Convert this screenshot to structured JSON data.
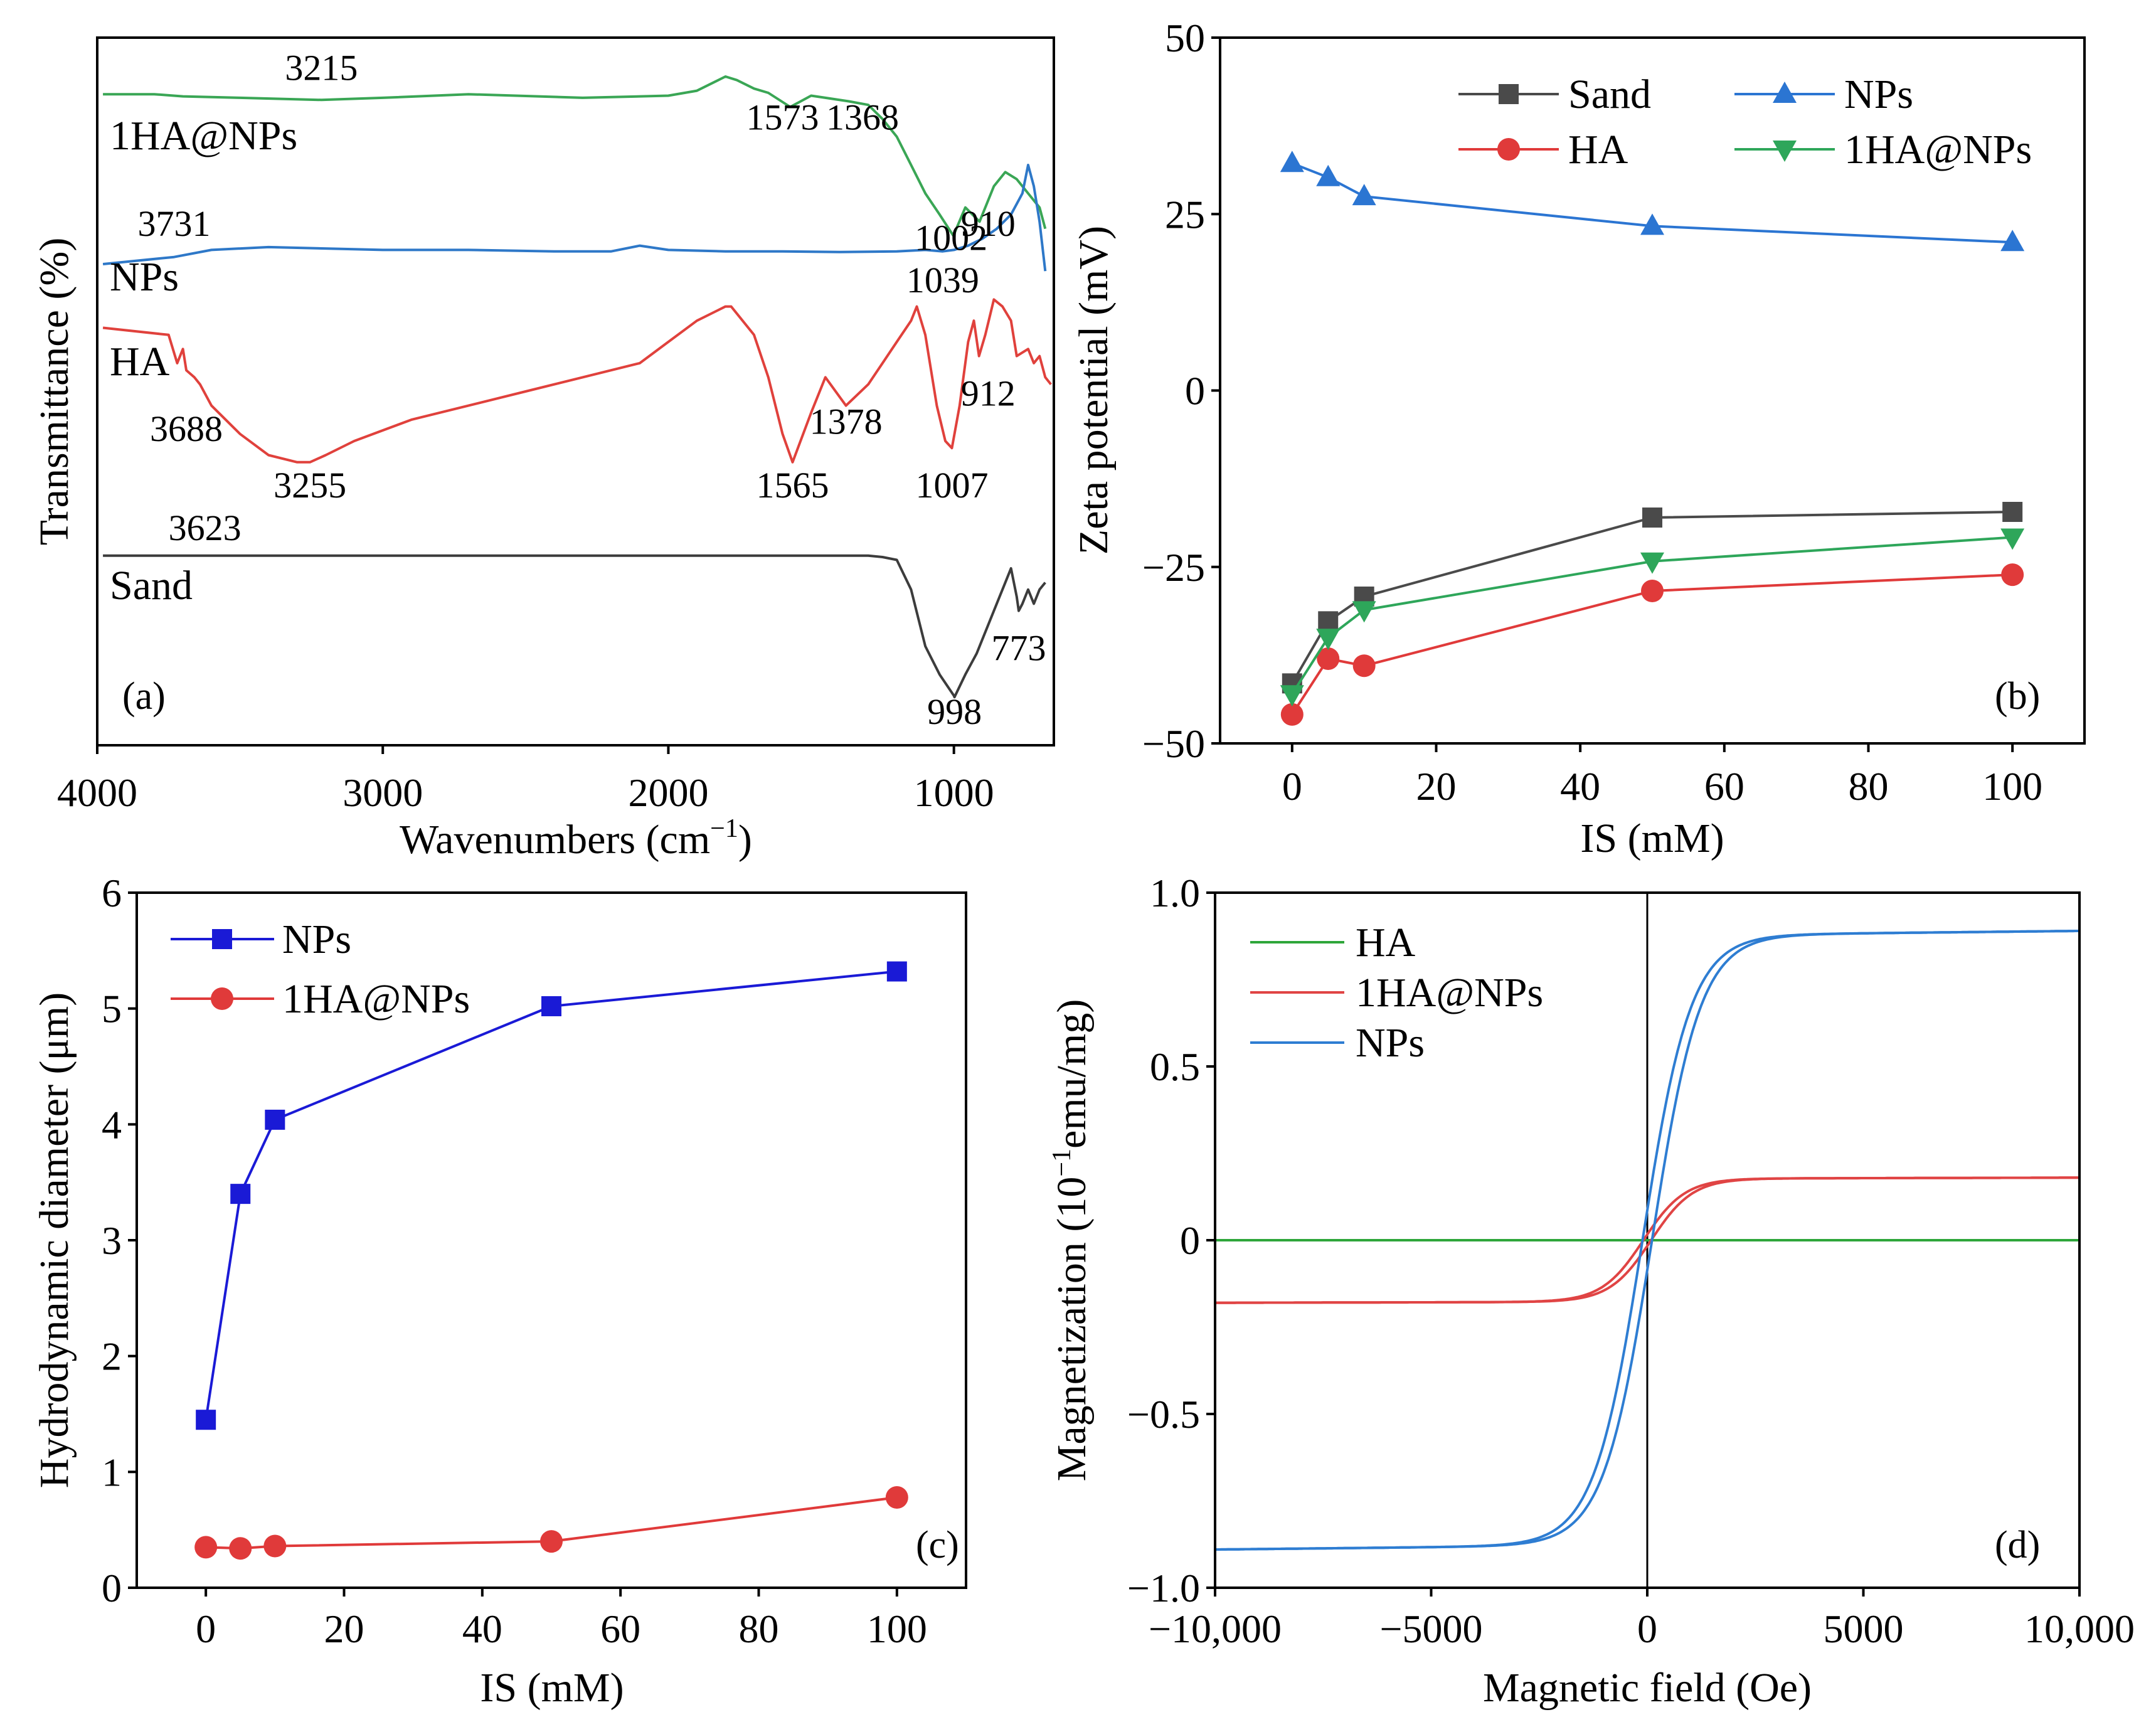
{
  "chart_data": [
    {
      "type": "line",
      "panel": "(a)",
      "xlabel": "Wavenumbers (cm",
      "xlabel_sup": "−1",
      "xlabel_end": ")",
      "ylabel": "Transmittance (%)",
      "xlim": [
        4000,
        650
      ],
      "xticks": [
        "4000",
        "3000",
        "2000",
        "1000"
      ],
      "colors": {
        "1HA@NPs": "#3aa655",
        "NPs": "#2e78c8",
        "HA": "#e0413c",
        "Sand": "#3c3c3c"
      },
      "series_labels": [
        "1HA@NPs",
        "NPs",
        "HA",
        "Sand"
      ],
      "series": [
        {
          "name": "1HA@NPs",
          "x": [
            3980,
            3800,
            3700,
            3500,
            3215,
            3000,
            2700,
            2300,
            2000,
            1900,
            1800,
            1760,
            1700,
            1650,
            1573,
            1500,
            1450,
            1368,
            1300,
            1250,
            1200,
            1150,
            1100,
            1050,
            1002,
            960,
            910,
            860,
            820,
            780,
            740,
            700,
            680
          ],
          "y": [
            0.92,
            0.92,
            0.917,
            0.915,
            0.912,
            0.915,
            0.92,
            0.915,
            0.918,
            0.925,
            0.945,
            0.94,
            0.928,
            0.922,
            0.902,
            0.918,
            0.915,
            0.91,
            0.905,
            0.885,
            0.86,
            0.82,
            0.78,
            0.75,
            0.72,
            0.76,
            0.74,
            0.79,
            0.81,
            0.8,
            0.78,
            0.76,
            0.73
          ]
        },
        {
          "name": "NPs",
          "x": [
            3980,
            3731,
            3600,
            3400,
            3000,
            2700,
            2400,
            2200,
            2100,
            2000,
            1800,
            1600,
            1400,
            1200,
            1100,
            1039,
            1000,
            950,
            900,
            850,
            800,
            760,
            740,
            720,
            700,
            680
          ],
          "y": [
            0.68,
            0.69,
            0.7,
            0.704,
            0.7,
            0.7,
            0.698,
            0.698,
            0.706,
            0.7,
            0.698,
            0.698,
            0.697,
            0.698,
            0.7,
            0.698,
            0.7,
            0.706,
            0.716,
            0.73,
            0.75,
            0.78,
            0.82,
            0.79,
            0.74,
            0.67
          ]
        },
        {
          "name": "HA",
          "x": [
            3980,
            3750,
            3720,
            3700,
            3688,
            3660,
            3640,
            3600,
            3500,
            3400,
            3300,
            3255,
            3200,
            3100,
            2900,
            2700,
            2500,
            2300,
            2100,
            2000,
            1900,
            1800,
            1780,
            1700,
            1650,
            1600,
            1565,
            1500,
            1450,
            1378,
            1300,
            1250,
            1200,
            1150,
            1130,
            1100,
            1060,
            1030,
            1007,
            980,
            950,
            930,
            912,
            890,
            860,
            830,
            800,
            780,
            740,
            720,
            700,
            680,
            660
          ],
          "y": [
            0.59,
            0.58,
            0.54,
            0.56,
            0.53,
            0.52,
            0.51,
            0.48,
            0.44,
            0.41,
            0.4,
            0.4,
            0.41,
            0.43,
            0.46,
            0.48,
            0.5,
            0.52,
            0.54,
            0.57,
            0.6,
            0.62,
            0.62,
            0.58,
            0.52,
            0.44,
            0.4,
            0.47,
            0.52,
            0.48,
            0.51,
            0.54,
            0.57,
            0.6,
            0.62,
            0.58,
            0.48,
            0.43,
            0.42,
            0.48,
            0.57,
            0.6,
            0.55,
            0.58,
            0.63,
            0.62,
            0.6,
            0.55,
            0.56,
            0.54,
            0.55,
            0.52,
            0.51
          ]
        },
        {
          "name": "Sand",
          "x": [
            3980,
            3623,
            3500,
            3255,
            3000,
            2500,
            2000,
            1500,
            1300,
            1250,
            1200,
            1150,
            1100,
            1050,
            1000,
            998,
            960,
            920,
            880,
            840,
            820,
            800,
            780,
            773,
            760,
            740,
            720,
            700,
            680
          ],
          "y": [
            0.268,
            0.268,
            0.268,
            0.268,
            0.268,
            0.268,
            0.268,
            0.268,
            0.268,
            0.266,
            0.262,
            0.22,
            0.14,
            0.1,
            0.07,
            0.068,
            0.1,
            0.13,
            0.17,
            0.21,
            0.23,
            0.25,
            0.21,
            0.19,
            0.2,
            0.22,
            0.2,
            0.22,
            0.23
          ]
        }
      ],
      "annotations": [
        {
          "text": "3215",
          "x": 3215,
          "y": 0.94
        },
        {
          "text": "1573",
          "x": 1600,
          "y": 0.87
        },
        {
          "text": "1368",
          "x": 1320,
          "y": 0.87
        },
        {
          "text": "910",
          "x": 880,
          "y": 0.72
        },
        {
          "text": "1002",
          "x": 1010,
          "y": 0.7
        },
        {
          "text": "3731",
          "x": 3731,
          "y": 0.72
        },
        {
          "text": "1039",
          "x": 1039,
          "y": 0.64
        },
        {
          "text": "3688",
          "x": 3688,
          "y": 0.43
        },
        {
          "text": "3255",
          "x": 3255,
          "y": 0.35
        },
        {
          "text": "1565",
          "x": 1565,
          "y": 0.35
        },
        {
          "text": "1378",
          "x": 1378,
          "y": 0.44
        },
        {
          "text": "1007",
          "x": 1007,
          "y": 0.35
        },
        {
          "text": "912",
          "x": 880,
          "y": 0.48
        },
        {
          "text": "3623",
          "x": 3623,
          "y": 0.29
        },
        {
          "text": "773",
          "x": 773,
          "y": 0.12
        },
        {
          "text": "998",
          "x": 998,
          "y": 0.03
        }
      ]
    },
    {
      "type": "line",
      "panel": "(b)",
      "xlabel": "IS (mM)",
      "ylabel": "Zeta potential (mV)",
      "xlim": [
        -10,
        110
      ],
      "ylim": [
        -50,
        50
      ],
      "xticks": [
        0,
        20,
        40,
        60,
        80,
        100
      ],
      "yticks": [
        -50,
        -25,
        0,
        25,
        50
      ],
      "ytick_labels": [
        "−50",
        "−25",
        "0",
        "25",
        "50"
      ],
      "series": [
        {
          "name": "Sand",
          "color": "#4a4a4a",
          "marker": "square",
          "x": [
            0,
            5,
            10,
            50,
            100
          ],
          "y": [
            -41.5,
            -32.7,
            -29.2,
            -18.0,
            -17.2
          ]
        },
        {
          "name": "NPs",
          "color": "#2b75d2",
          "marker": "triangle-up",
          "x": [
            0,
            5,
            10,
            50,
            100
          ],
          "y": [
            32.2,
            30.2,
            27.5,
            23.3,
            21.0
          ]
        },
        {
          "name": "HA",
          "color": "#e03a3a",
          "marker": "circle",
          "x": [
            0,
            5,
            10,
            50,
            100
          ],
          "y": [
            -45.9,
            -38.0,
            -39.0,
            -28.4,
            -26.1
          ]
        },
        {
          "name": "1HA@NPs",
          "color": "#2ea65a",
          "marker": "triangle-down",
          "x": [
            0,
            5,
            10,
            50,
            100
          ],
          "y": [
            -43.0,
            -35.0,
            -31.1,
            -24.2,
            -20.8
          ]
        }
      ]
    },
    {
      "type": "line",
      "panel": "(c)",
      "xlabel": "IS (mM)",
      "ylabel": "Hydrodynamic diameter (μm)",
      "xlim": [
        -10,
        110
      ],
      "ylim": [
        0,
        6
      ],
      "xticks": [
        0,
        20,
        40,
        60,
        80,
        100
      ],
      "yticks": [
        0,
        1,
        2,
        3,
        4,
        5,
        6
      ],
      "series": [
        {
          "name": "NPs",
          "color": "#1a1ad6",
          "marker": "square",
          "x": [
            0,
            5,
            10,
            50,
            100
          ],
          "y": [
            1.45,
            3.4,
            4.04,
            5.02,
            5.32
          ]
        },
        {
          "name": "1HA@NPs",
          "color": "#e03a3a",
          "marker": "circle",
          "x": [
            0,
            5,
            10,
            50,
            100
          ],
          "y": [
            0.35,
            0.34,
            0.36,
            0.4,
            0.78
          ]
        }
      ]
    },
    {
      "type": "line",
      "panel": "(d)",
      "xlabel": "Magnetic field (Oe)",
      "ylabel": "Magnetization (10",
      "ylabel_sup": "−1",
      "ylabel_end": "emu/mg)",
      "xlim": [
        -10000,
        10000
      ],
      "ylim": [
        -1.0,
        1.0
      ],
      "xticks": [
        -10000,
        -5000,
        0,
        5000,
        10000
      ],
      "xtick_labels": [
        "−10,000",
        "−5000",
        "0",
        "5000",
        "10,000"
      ],
      "yticks": [
        -1.0,
        -0.5,
        0,
        0.5,
        1.0
      ],
      "ytick_labels": [
        "−1.0",
        "−0.5",
        "0",
        "0.5",
        "1.0"
      ],
      "series": [
        {
          "name": "HA",
          "color": "#2ea63a",
          "Ms": 0.0,
          "H0": 500,
          "Hc": 0
        },
        {
          "name": "1HA@NPs",
          "color": "#e04444",
          "Ms": 0.18,
          "H0": 480,
          "Hc": 90
        },
        {
          "name": "NPs",
          "color": "#2e7dd2",
          "Ms": 0.89,
          "H0": 560,
          "Hc": 110
        }
      ]
    }
  ]
}
